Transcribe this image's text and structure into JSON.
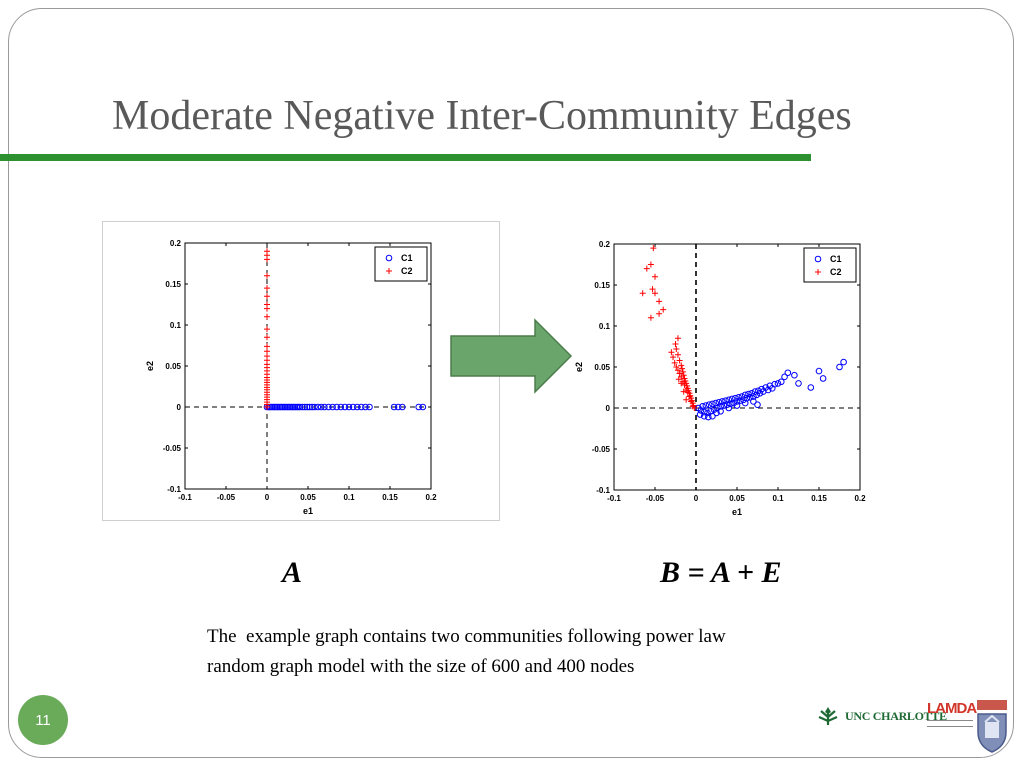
{
  "slide": {
    "title": "Moderate Negative Inter-Community Edges",
    "caption_left": "A",
    "caption_right": "B = A + E",
    "description": "The  example graph contains two communities following power law\nrandom graph model with the size of 600 and 400 nodes",
    "page_number": "11",
    "logos": {
      "unc": "UNC CHARLOTTE",
      "lamda": "LAMDA"
    },
    "colors": {
      "title_rule": "#2e9130",
      "arrow": "#6aa56b",
      "badge": "#6aab5a",
      "series_c1": "#0000ff",
      "series_c2": "#ff0000"
    }
  },
  "chart_data": [
    {
      "type": "scatter",
      "xlabel": "e1",
      "ylabel": "e2",
      "xlim": [
        -0.1,
        0.2
      ],
      "ylim": [
        -0.1,
        0.2
      ],
      "xticks": [
        -0.1,
        -0.05,
        0,
        0.05,
        0.1,
        0.15,
        0.2
      ],
      "yticks": [
        -0.1,
        -0.05,
        0,
        0.05,
        0.1,
        0.15,
        0.2
      ],
      "xtick_labels": [
        "-0.1",
        "-0.05",
        "0",
        "0.05",
        "0.1",
        "0.15",
        "0.2"
      ],
      "ytick_labels": [
        "-0.1",
        "-0.05",
        "0",
        "0.05",
        "0.1",
        "0.15",
        "0.2"
      ],
      "grid": false,
      "legend": "top-right",
      "series": [
        {
          "name": "C1",
          "marker": "circle",
          "points": [
            [
              0.0,
              0.0
            ],
            [
              0.002,
              0.0
            ],
            [
              0.004,
              0.0
            ],
            [
              0.006,
              0.0
            ],
            [
              0.008,
              0.0
            ],
            [
              0.01,
              0.0
            ],
            [
              0.012,
              0.0
            ],
            [
              0.014,
              0.0
            ],
            [
              0.016,
              0.0
            ],
            [
              0.018,
              0.0
            ],
            [
              0.02,
              0.0
            ],
            [
              0.022,
              0.0
            ],
            [
              0.024,
              0.0
            ],
            [
              0.026,
              0.0
            ],
            [
              0.028,
              0.0
            ],
            [
              0.03,
              0.0
            ],
            [
              0.032,
              0.0
            ],
            [
              0.034,
              0.0
            ],
            [
              0.036,
              0.0
            ],
            [
              0.038,
              0.0
            ],
            [
              0.04,
              0.0
            ],
            [
              0.043,
              0.0
            ],
            [
              0.046,
              0.0
            ],
            [
              0.049,
              0.0
            ],
            [
              0.052,
              0.0
            ],
            [
              0.055,
              0.0
            ],
            [
              0.058,
              0.0
            ],
            [
              0.062,
              0.0
            ],
            [
              0.066,
              0.0
            ],
            [
              0.07,
              0.0
            ],
            [
              0.075,
              0.0
            ],
            [
              0.08,
              0.0
            ],
            [
              0.085,
              0.0
            ],
            [
              0.09,
              0.0
            ],
            [
              0.095,
              0.0
            ],
            [
              0.1,
              0.0
            ],
            [
              0.105,
              0.0
            ],
            [
              0.11,
              0.0
            ],
            [
              0.115,
              0.0
            ],
            [
              0.12,
              0.0
            ],
            [
              0.125,
              0.0
            ],
            [
              0.155,
              0.0
            ],
            [
              0.16,
              0.0
            ],
            [
              0.165,
              0.0
            ],
            [
              0.185,
              0.0
            ],
            [
              0.19,
              0.0
            ]
          ]
        },
        {
          "name": "C2",
          "marker": "plus",
          "points": [
            [
              0.0,
              0.0
            ],
            [
              0.0,
              0.003
            ],
            [
              0.0,
              0.006
            ],
            [
              0.0,
              0.009
            ],
            [
              0.0,
              0.012
            ],
            [
              0.0,
              0.015
            ],
            [
              0.0,
              0.018
            ],
            [
              0.0,
              0.021
            ],
            [
              0.0,
              0.024
            ],
            [
              0.0,
              0.027
            ],
            [
              0.0,
              0.03
            ],
            [
              0.0,
              0.033
            ],
            [
              0.0,
              0.036
            ],
            [
              0.0,
              0.04
            ],
            [
              0.0,
              0.044
            ],
            [
              0.0,
              0.048
            ],
            [
              0.0,
              0.052
            ],
            [
              0.0,
              0.057
            ],
            [
              0.0,
              0.062
            ],
            [
              0.0,
              0.068
            ],
            [
              0.0,
              0.074
            ],
            [
              0.0,
              0.085
            ],
            [
              0.0,
              0.095
            ],
            [
              0.0,
              0.11
            ],
            [
              0.0,
              0.12
            ],
            [
              0.0,
              0.125
            ],
            [
              0.0,
              0.135
            ],
            [
              0.0,
              0.145
            ],
            [
              0.0,
              0.16
            ],
            [
              0.0,
              0.18
            ],
            [
              0.0,
              0.185
            ],
            [
              0.0,
              0.19
            ]
          ]
        }
      ]
    },
    {
      "type": "scatter",
      "xlabel": "e1",
      "ylabel": "e2",
      "xlim": [
        -0.1,
        0.2
      ],
      "ylim": [
        -0.1,
        0.2
      ],
      "xticks": [
        -0.1,
        -0.05,
        0,
        0.05,
        0.1,
        0.15,
        0.2
      ],
      "yticks": [
        -0.1,
        -0.05,
        0,
        0.05,
        0.1,
        0.15,
        0.2
      ],
      "xtick_labels": [
        "-0.1",
        "-0.05",
        "0",
        "0.05",
        "0.1",
        "0.15",
        "0.2"
      ],
      "ytick_labels": [
        "-0.1",
        "-0.05",
        "0",
        "0.05",
        "0.1",
        "0.15",
        "0.2"
      ],
      "grid": false,
      "legend": "top-right",
      "series": [
        {
          "name": "C1",
          "marker": "circle",
          "points": [
            [
              0.003,
              0.0
            ],
            [
              0.006,
              -0.003
            ],
            [
              0.008,
              0.002
            ],
            [
              0.01,
              -0.005
            ],
            [
              0.012,
              0.003
            ],
            [
              0.014,
              -0.006
            ],
            [
              0.016,
              0.004
            ],
            [
              0.018,
              -0.004
            ],
            [
              0.02,
              0.005
            ],
            [
              0.022,
              -0.002
            ],
            [
              0.024,
              0.006
            ],
            [
              0.026,
              0.0
            ],
            [
              0.028,
              0.007
            ],
            [
              0.03,
              0.002
            ],
            [
              0.032,
              0.008
            ],
            [
              0.034,
              0.003
            ],
            [
              0.036,
              0.009
            ],
            [
              0.038,
              0.004
            ],
            [
              0.04,
              0.01
            ],
            [
              0.042,
              0.005
            ],
            [
              0.044,
              0.011
            ],
            [
              0.046,
              0.006
            ],
            [
              0.048,
              0.012
            ],
            [
              0.05,
              0.008
            ],
            [
              0.052,
              0.013
            ],
            [
              0.054,
              0.009
            ],
            [
              0.056,
              0.014
            ],
            [
              0.058,
              0.01
            ],
            [
              0.06,
              0.016
            ],
            [
              0.062,
              0.012
            ],
            [
              0.064,
              0.017
            ],
            [
              0.066,
              0.013
            ],
            [
              0.068,
              0.018
            ],
            [
              0.07,
              0.014
            ],
            [
              0.072,
              0.02
            ],
            [
              0.074,
              0.016
            ],
            [
              0.076,
              0.021
            ],
            [
              0.078,
              0.018
            ],
            [
              0.08,
              0.023
            ],
            [
              0.082,
              0.02
            ],
            [
              0.085,
              0.025
            ],
            [
              0.088,
              0.022
            ],
            [
              0.09,
              0.027
            ],
            [
              0.093,
              0.024
            ],
            [
              0.096,
              0.029
            ],
            [
              0.1,
              0.03
            ],
            [
              0.104,
              0.032
            ],
            [
              0.108,
              0.038
            ],
            [
              0.112,
              0.043
            ],
            [
              0.005,
              -0.008
            ],
            [
              0.01,
              -0.01
            ],
            [
              0.015,
              -0.011
            ],
            [
              0.02,
              -0.01
            ],
            [
              0.025,
              -0.006
            ],
            [
              0.03,
              -0.004
            ],
            [
              0.04,
              0.0
            ],
            [
              0.05,
              0.003
            ],
            [
              0.06,
              0.006
            ],
            [
              0.07,
              0.008
            ],
            [
              0.075,
              0.004
            ],
            [
              0.12,
              0.04
            ],
            [
              0.125,
              0.03
            ],
            [
              0.14,
              0.025
            ],
            [
              0.15,
              0.045
            ],
            [
              0.155,
              0.036
            ],
            [
              0.175,
              0.05
            ],
            [
              0.18,
              0.056
            ]
          ]
        },
        {
          "name": "C2",
          "marker": "plus",
          "points": [
            [
              -0.002,
              0.0
            ],
            [
              -0.003,
              0.003
            ],
            [
              -0.004,
              0.006
            ],
            [
              -0.005,
              0.009
            ],
            [
              -0.006,
              0.012
            ],
            [
              -0.007,
              0.015
            ],
            [
              -0.008,
              0.018
            ],
            [
              -0.009,
              0.021
            ],
            [
              -0.01,
              0.024
            ],
            [
              -0.011,
              0.027
            ],
            [
              -0.012,
              0.03
            ],
            [
              -0.013,
              0.033
            ],
            [
              -0.014,
              0.036
            ],
            [
              -0.015,
              0.04
            ],
            [
              -0.016,
              0.044
            ],
            [
              -0.017,
              0.048
            ],
            [
              -0.018,
              0.052
            ],
            [
              -0.02,
              0.058
            ],
            [
              -0.022,
              0.065
            ],
            [
              -0.024,
              0.072
            ],
            [
              -0.025,
              0.078
            ],
            [
              -0.004,
              0.002
            ],
            [
              -0.006,
              0.008
            ],
            [
              -0.008,
              0.014
            ],
            [
              -0.01,
              0.019
            ],
            [
              -0.012,
              0.022
            ],
            [
              -0.014,
              0.028
            ],
            [
              -0.016,
              0.032
            ],
            [
              -0.018,
              0.038
            ],
            [
              -0.02,
              0.042
            ],
            [
              -0.022,
              0.046
            ],
            [
              -0.012,
              0.01
            ],
            [
              -0.015,
              0.02
            ],
            [
              -0.018,
              0.03
            ],
            [
              -0.021,
              0.035
            ],
            [
              -0.024,
              0.05
            ],
            [
              -0.026,
              0.055
            ],
            [
              -0.03,
              0.068
            ],
            [
              -0.028,
              0.062
            ],
            [
              -0.022,
              0.085
            ],
            [
              -0.04,
              0.12
            ],
            [
              -0.045,
              0.115
            ],
            [
              -0.05,
              0.14
            ],
            [
              -0.055,
              0.175
            ],
            [
              -0.053,
              0.145
            ],
            [
              -0.055,
              0.11
            ],
            [
              -0.05,
              0.16
            ],
            [
              -0.052,
              0.195
            ],
            [
              -0.06,
              0.17
            ],
            [
              -0.065,
              0.14
            ],
            [
              -0.045,
              0.13
            ]
          ]
        }
      ]
    }
  ]
}
